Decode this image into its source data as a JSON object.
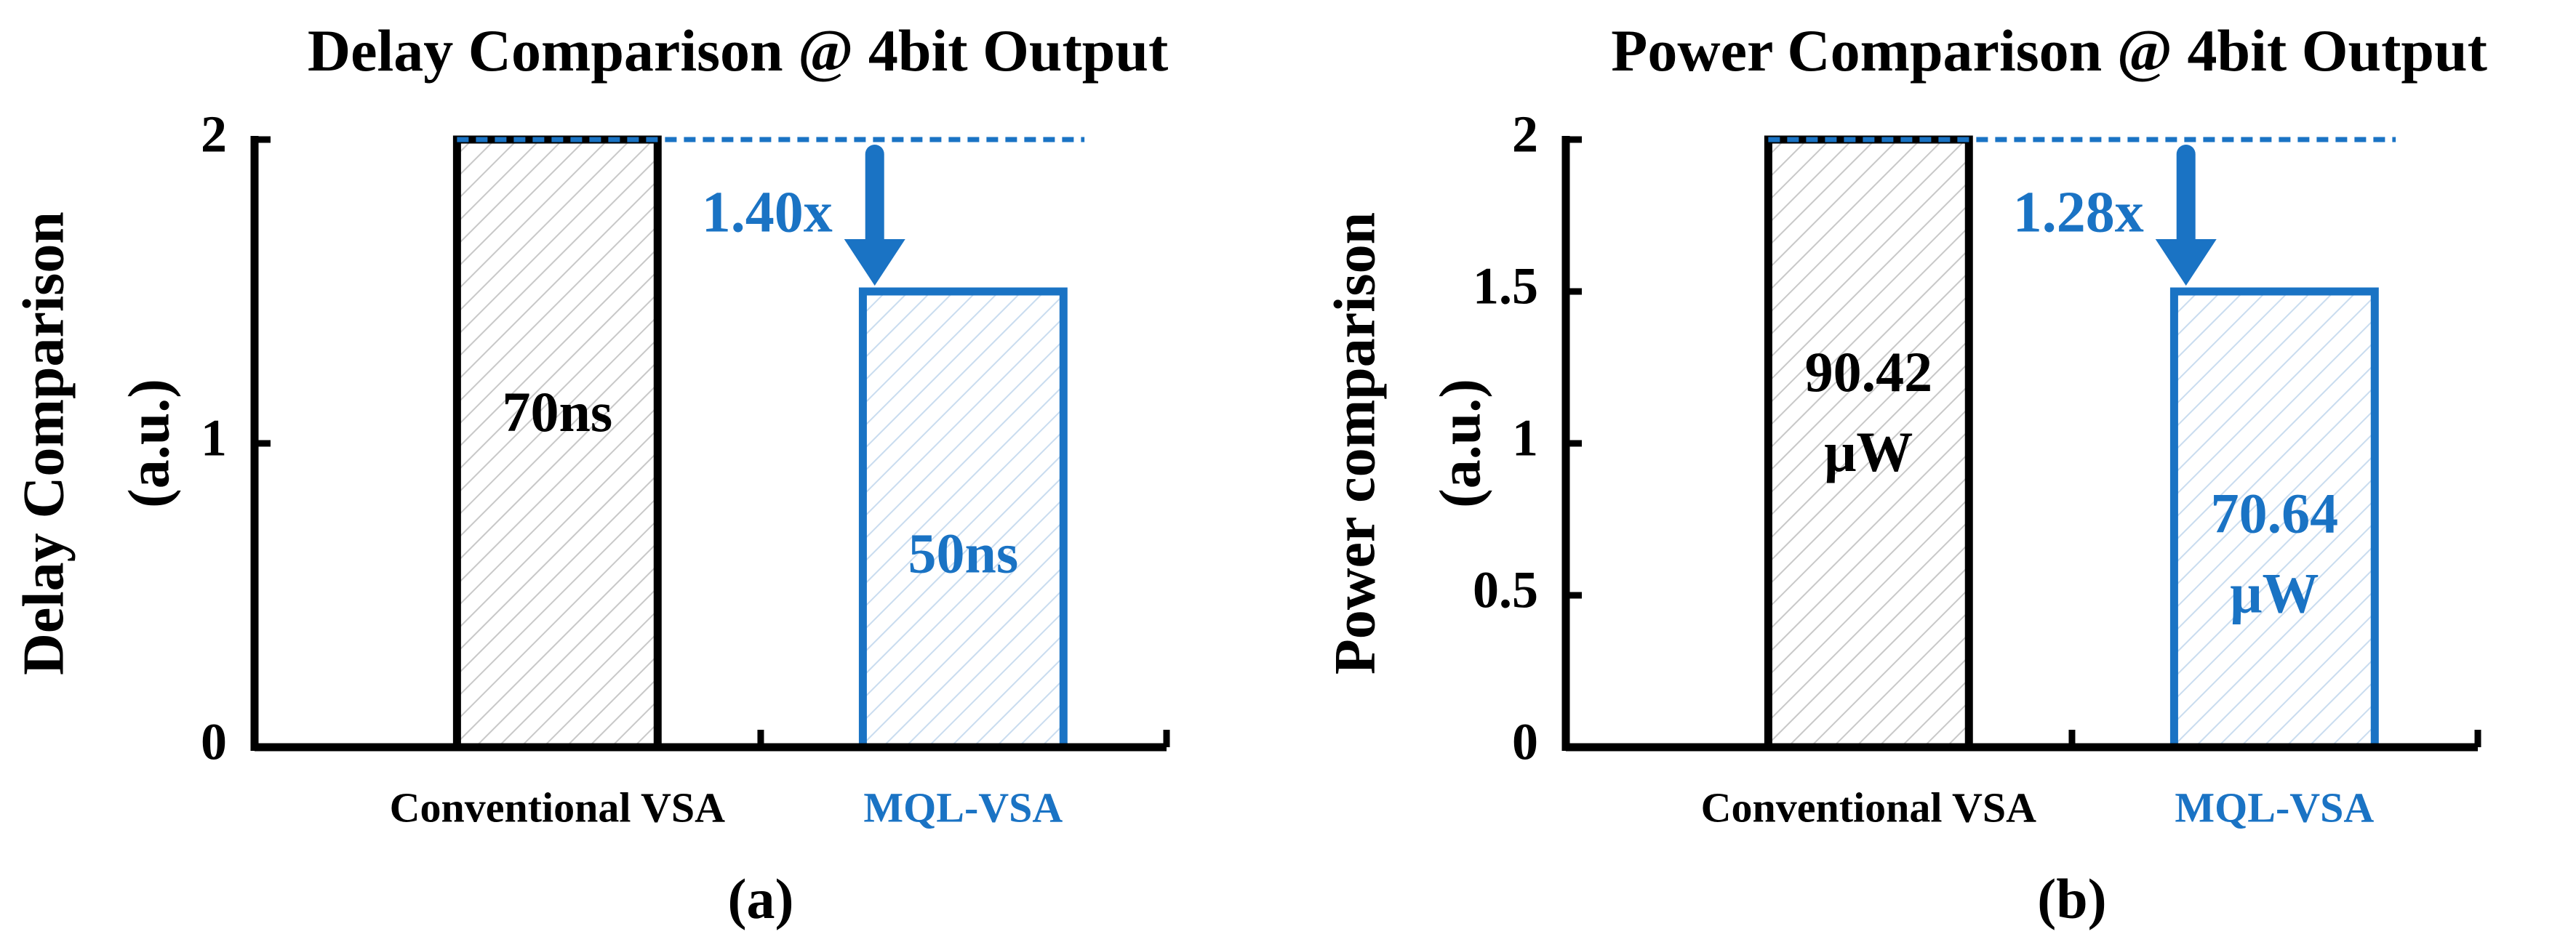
{
  "chart_data": [
    {
      "type": "bar",
      "title": "Delay Comparison @ 4bit Output",
      "ylabel": [
        "Delay Comparison",
        "(a.u.)"
      ],
      "categories": [
        "Conventional VSA",
        "MQL-VSA"
      ],
      "values": [
        2,
        1.5
      ],
      "colors": [
        "#000000",
        "#1a73c4"
      ],
      "bar_texts": [
        [
          "70ns"
        ],
        [
          "50ns"
        ]
      ],
      "ratio_label": "1.40x",
      "ylim": [
        0,
        2
      ],
      "yticks": [
        0,
        1,
        2
      ],
      "caption": "(a)"
    },
    {
      "type": "bar",
      "title": "Power Comparison @ 4bit Output",
      "ylabel": [
        "Power comparison",
        "(a.u.)"
      ],
      "categories": [
        "Conventional VSA",
        "MQL-VSA"
      ],
      "values": [
        2,
        1.5
      ],
      "colors": [
        "#000000",
        "#1a73c4"
      ],
      "bar_texts": [
        [
          "90.42",
          "μW"
        ],
        [
          "70.64",
          "μW"
        ]
      ],
      "ratio_label": "1.28x",
      "ylim": [
        0,
        2
      ],
      "yticks": [
        0,
        0.5,
        1,
        1.5,
        2
      ],
      "caption": "(b)"
    }
  ]
}
